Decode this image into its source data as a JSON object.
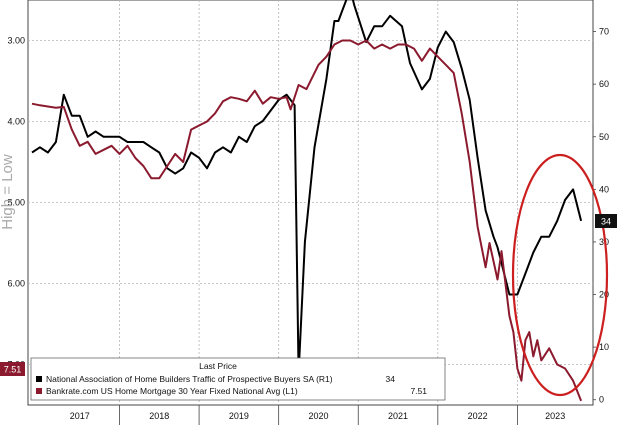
{
  "chart_data": {
    "type": "line",
    "side_label": "High = Low",
    "x_ticks": [
      "2017",
      "2018",
      "2019",
      "2020",
      "2021",
      "2022",
      "2023"
    ],
    "left_axis": {
      "ticks": [
        "3.00",
        "4.00",
        "5.00",
        "6.00",
        "7.00"
      ],
      "tick_values": [
        3.0,
        4.0,
        5.0,
        6.0,
        7.0
      ],
      "inverted": true,
      "range": [
        2.5,
        7.5
      ]
    },
    "right_axis": {
      "ticks": [
        "0",
        "10",
        "20",
        "30",
        "40",
        "50",
        "60",
        "70"
      ],
      "tick_values": [
        0,
        10,
        20,
        30,
        40,
        50,
        60,
        70
      ],
      "range": [
        -1,
        76
      ]
    },
    "legend": {
      "header": "Last Price",
      "position": "bottom-left"
    },
    "series": [
      {
        "name": "National Association of Home Builders Traffic of Prospective Buyers SA  (R1)",
        "axis": "right",
        "color": "#000000",
        "last_value": "34",
        "points": [
          [
            2016.9,
            47
          ],
          [
            2017.0,
            48
          ],
          [
            2017.1,
            47
          ],
          [
            2017.2,
            49
          ],
          [
            2017.3,
            58
          ],
          [
            2017.4,
            54
          ],
          [
            2017.5,
            54
          ],
          [
            2017.6,
            50
          ],
          [
            2017.7,
            51
          ],
          [
            2017.8,
            50
          ],
          [
            2017.9,
            50
          ],
          [
            2018.0,
            50
          ],
          [
            2018.1,
            49
          ],
          [
            2018.2,
            49
          ],
          [
            2018.3,
            49
          ],
          [
            2018.4,
            48
          ],
          [
            2018.5,
            47
          ],
          [
            2018.6,
            44
          ],
          [
            2018.7,
            43
          ],
          [
            2018.8,
            44
          ],
          [
            2018.9,
            47
          ],
          [
            2019.0,
            46
          ],
          [
            2019.1,
            44
          ],
          [
            2019.2,
            47
          ],
          [
            2019.3,
            48
          ],
          [
            2019.4,
            47
          ],
          [
            2019.5,
            50
          ],
          [
            2019.6,
            49
          ],
          [
            2019.7,
            52
          ],
          [
            2019.8,
            53
          ],
          [
            2019.9,
            55
          ],
          [
            2020.0,
            57
          ],
          [
            2020.1,
            58
          ],
          [
            2020.2,
            56
          ],
          [
            2020.25,
            5
          ],
          [
            2020.33,
            30
          ],
          [
            2020.45,
            48
          ],
          [
            2020.6,
            61
          ],
          [
            2020.7,
            72
          ],
          [
            2020.75,
            72
          ],
          [
            2020.8,
            74
          ],
          [
            2020.9,
            78
          ],
          [
            2020.95,
            75
          ],
          [
            2021.1,
            68
          ],
          [
            2021.2,
            71
          ],
          [
            2021.3,
            71
          ],
          [
            2021.4,
            73
          ],
          [
            2021.55,
            71
          ],
          [
            2021.65,
            64
          ],
          [
            2021.8,
            59
          ],
          [
            2021.9,
            61
          ],
          [
            2022.0,
            67
          ],
          [
            2022.1,
            70
          ],
          [
            2022.2,
            68
          ],
          [
            2022.3,
            63
          ],
          [
            2022.4,
            57
          ],
          [
            2022.5,
            46
          ],
          [
            2022.6,
            36
          ],
          [
            2022.7,
            31
          ],
          [
            2022.75,
            29
          ],
          [
            2022.8,
            26
          ],
          [
            2022.9,
            20
          ],
          [
            2023.0,
            20
          ],
          [
            2023.1,
            24
          ],
          [
            2023.2,
            28
          ],
          [
            2023.3,
            31
          ],
          [
            2023.4,
            31
          ],
          [
            2023.5,
            34
          ],
          [
            2023.6,
            38
          ],
          [
            2023.7,
            40
          ],
          [
            2023.8,
            34
          ]
        ]
      },
      {
        "name": "Bankrate.com US Home Mortgage 30 Year Fixed National Avg  (L1)",
        "axis": "left",
        "color": "#8b1a2e",
        "last_value": "7.51",
        "points": [
          [
            2016.9,
            3.78
          ],
          [
            2017.0,
            3.8
          ],
          [
            2017.2,
            3.83
          ],
          [
            2017.3,
            3.82
          ],
          [
            2017.4,
            4.1
          ],
          [
            2017.5,
            4.3
          ],
          [
            2017.6,
            4.25
          ],
          [
            2017.7,
            4.4
          ],
          [
            2017.8,
            4.35
          ],
          [
            2017.9,
            4.3
          ],
          [
            2018.0,
            4.4
          ],
          [
            2018.1,
            4.3
          ],
          [
            2018.2,
            4.45
          ],
          [
            2018.3,
            4.55
          ],
          [
            2018.4,
            4.7
          ],
          [
            2018.5,
            4.7
          ],
          [
            2018.6,
            4.55
          ],
          [
            2018.7,
            4.4
          ],
          [
            2018.8,
            4.5
          ],
          [
            2018.9,
            4.1
          ],
          [
            2019.0,
            4.05
          ],
          [
            2019.1,
            4.0
          ],
          [
            2019.2,
            3.9
          ],
          [
            2019.3,
            3.75
          ],
          [
            2019.4,
            3.7
          ],
          [
            2019.5,
            3.72
          ],
          [
            2019.6,
            3.75
          ],
          [
            2019.7,
            3.62
          ],
          [
            2019.8,
            3.78
          ],
          [
            2019.9,
            3.7
          ],
          [
            2020.0,
            3.72
          ],
          [
            2020.1,
            3.7
          ],
          [
            2020.15,
            3.85
          ],
          [
            2020.25,
            3.55
          ],
          [
            2020.35,
            3.6
          ],
          [
            2020.5,
            3.3
          ],
          [
            2020.6,
            3.2
          ],
          [
            2020.7,
            3.05
          ],
          [
            2020.8,
            3.0
          ],
          [
            2020.9,
            3.0
          ],
          [
            2021.0,
            3.05
          ],
          [
            2021.1,
            3.0
          ],
          [
            2021.2,
            3.1
          ],
          [
            2021.3,
            3.05
          ],
          [
            2021.4,
            3.1
          ],
          [
            2021.5,
            3.05
          ],
          [
            2021.6,
            3.05
          ],
          [
            2021.7,
            3.1
          ],
          [
            2021.8,
            3.25
          ],
          [
            2021.9,
            3.1
          ],
          [
            2022.0,
            3.2
          ],
          [
            2022.1,
            3.3
          ],
          [
            2022.2,
            3.4
          ],
          [
            2022.3,
            3.9
          ],
          [
            2022.4,
            4.5
          ],
          [
            2022.5,
            5.3
          ],
          [
            2022.6,
            5.8
          ],
          [
            2022.65,
            5.5
          ],
          [
            2022.75,
            5.95
          ],
          [
            2022.8,
            5.6
          ],
          [
            2022.9,
            6.4
          ],
          [
            2022.95,
            6.6
          ],
          [
            2023.0,
            7.05
          ],
          [
            2023.05,
            7.2
          ],
          [
            2023.1,
            6.7
          ],
          [
            2023.15,
            6.6
          ],
          [
            2023.2,
            6.9
          ],
          [
            2023.25,
            6.7
          ],
          [
            2023.3,
            6.95
          ],
          [
            2023.4,
            6.8
          ],
          [
            2023.5,
            7.0
          ],
          [
            2023.6,
            7.05
          ],
          [
            2023.7,
            7.2
          ],
          [
            2023.8,
            7.45
          ]
        ]
      }
    ]
  }
}
